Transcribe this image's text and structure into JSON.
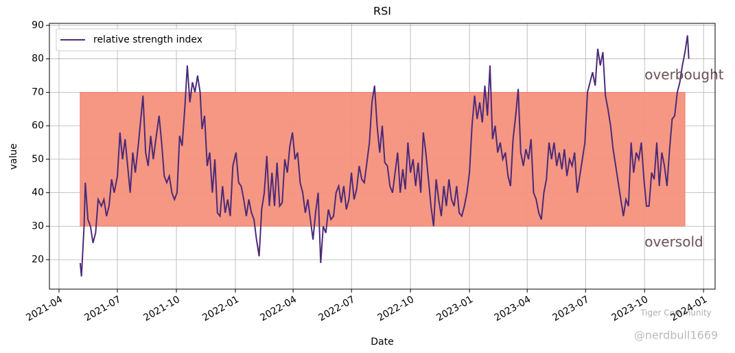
{
  "chart_data": {
    "type": "line",
    "title": "RSI",
    "x_label": "Date",
    "y_label": "value",
    "series": [
      {
        "name": "relative strength index",
        "color": "#4b2a78",
        "x": [
          "2021-05-04",
          "2021-05-06",
          "2021-05-10",
          "2021-05-12",
          "2021-05-16",
          "2021-05-20",
          "2021-05-24",
          "2021-05-28",
          "2021-06-01",
          "2021-06-06",
          "2021-06-10",
          "2021-06-14",
          "2021-06-18",
          "2021-06-22",
          "2021-06-26",
          "2021-07-01",
          "2021-07-05",
          "2021-07-09",
          "2021-07-13",
          "2021-07-17",
          "2021-07-21",
          "2021-07-25",
          "2021-07-29",
          "2021-08-03",
          "2021-08-07",
          "2021-08-10",
          "2021-08-14",
          "2021-08-18",
          "2021-08-22",
          "2021-08-26",
          "2021-08-30",
          "2021-09-04",
          "2021-09-08",
          "2021-09-12",
          "2021-09-16",
          "2021-09-20",
          "2021-09-24",
          "2021-09-28",
          "2021-10-02",
          "2021-10-06",
          "2021-10-10",
          "2021-10-14",
          "2021-10-18",
          "2021-10-22",
          "2021-10-26",
          "2021-10-30",
          "2021-11-03",
          "2021-11-07",
          "2021-11-10",
          "2021-11-14",
          "2021-11-18",
          "2021-11-22",
          "2021-11-26",
          "2021-11-30",
          "2021-12-04",
          "2021-12-08",
          "2021-12-12",
          "2021-12-16",
          "2021-12-20",
          "2021-12-24",
          "2021-12-28",
          "2022-01-02",
          "2022-01-06",
          "2022-01-10",
          "2022-01-14",
          "2022-01-18",
          "2022-01-22",
          "2022-01-26",
          "2022-01-30",
          "2022-02-03",
          "2022-02-07",
          "2022-02-11",
          "2022-02-15",
          "2022-02-19",
          "2022-02-23",
          "2022-02-27",
          "2022-03-03",
          "2022-03-07",
          "2022-03-11",
          "2022-03-15",
          "2022-03-19",
          "2022-03-23",
          "2022-03-27",
          "2022-03-31",
          "2022-04-04",
          "2022-04-08",
          "2022-04-12",
          "2022-04-16",
          "2022-04-20",
          "2022-04-24",
          "2022-04-28",
          "2022-05-02",
          "2022-05-06",
          "2022-05-10",
          "2022-05-14",
          "2022-05-18",
          "2022-05-22",
          "2022-05-26",
          "2022-05-30",
          "2022-06-03",
          "2022-06-07",
          "2022-06-11",
          "2022-06-15",
          "2022-06-19",
          "2022-06-23",
          "2022-06-27",
          "2022-07-01",
          "2022-07-05",
          "2022-07-09",
          "2022-07-13",
          "2022-07-17",
          "2022-07-21",
          "2022-07-25",
          "2022-07-29",
          "2022-08-02",
          "2022-08-06",
          "2022-08-10",
          "2022-08-14",
          "2022-08-18",
          "2022-08-22",
          "2022-08-26",
          "2022-08-30",
          "2022-09-03",
          "2022-09-07",
          "2022-09-11",
          "2022-09-15",
          "2022-09-19",
          "2022-09-23",
          "2022-09-27",
          "2022-10-01",
          "2022-10-05",
          "2022-10-09",
          "2022-10-13",
          "2022-10-17",
          "2022-10-21",
          "2022-10-25",
          "2022-10-29",
          "2022-11-02",
          "2022-11-06",
          "2022-11-10",
          "2022-11-14",
          "2022-11-18",
          "2022-11-22",
          "2022-11-26",
          "2022-11-30",
          "2022-12-04",
          "2022-12-08",
          "2022-12-12",
          "2022-12-16",
          "2022-12-20",
          "2022-12-24",
          "2022-12-28",
          "2023-01-01",
          "2023-01-05",
          "2023-01-09",
          "2023-01-13",
          "2023-01-17",
          "2023-01-21",
          "2023-01-25",
          "2023-01-29",
          "2023-02-02",
          "2023-02-06",
          "2023-02-10",
          "2023-02-14",
          "2023-02-18",
          "2023-02-22",
          "2023-02-26",
          "2023-03-02",
          "2023-03-06",
          "2023-03-10",
          "2023-03-14",
          "2023-03-18",
          "2023-03-22",
          "2023-03-26",
          "2023-03-30",
          "2023-04-03",
          "2023-04-07",
          "2023-04-11",
          "2023-04-15",
          "2023-04-19",
          "2023-04-23",
          "2023-04-27",
          "2023-05-01",
          "2023-05-05",
          "2023-05-09",
          "2023-05-13",
          "2023-05-17",
          "2023-05-21",
          "2023-05-25",
          "2023-05-29",
          "2023-06-02",
          "2023-06-06",
          "2023-06-10",
          "2023-06-14",
          "2023-06-18",
          "2023-06-22",
          "2023-06-26",
          "2023-06-30",
          "2023-07-04",
          "2023-07-08",
          "2023-07-12",
          "2023-07-16",
          "2023-07-20",
          "2023-07-24",
          "2023-07-28",
          "2023-08-01",
          "2023-08-05",
          "2023-08-09",
          "2023-08-13",
          "2023-08-17",
          "2023-08-21",
          "2023-08-25",
          "2023-08-29",
          "2023-09-02",
          "2023-09-06",
          "2023-09-10",
          "2023-09-14",
          "2023-09-18",
          "2023-09-22",
          "2023-09-26",
          "2023-09-30",
          "2023-10-04",
          "2023-10-08",
          "2023-10-12",
          "2023-10-16",
          "2023-10-20",
          "2023-10-24",
          "2023-10-28",
          "2023-11-01",
          "2023-11-05",
          "2023-11-09",
          "2023-11-13",
          "2023-11-17",
          "2023-11-21",
          "2023-11-25",
          "2023-11-29",
          "2023-12-03",
          "2023-12-07",
          "2023-12-09"
        ],
        "values": [
          19,
          15,
          30,
          43,
          32,
          30,
          25,
          28,
          38,
          36,
          38,
          33,
          36,
          44,
          40,
          45,
          58,
          50,
          56,
          48,
          40,
          52,
          46,
          55,
          63,
          69,
          52,
          48,
          57,
          50,
          56,
          63,
          55,
          45,
          43,
          45,
          40,
          38,
          40,
          57,
          54,
          65,
          78,
          67,
          73,
          70,
          75,
          70,
          59,
          63,
          48,
          52,
          40,
          50,
          34,
          33,
          42,
          34,
          38,
          33,
          48,
          52,
          43,
          42,
          38,
          33,
          38,
          34,
          32,
          26,
          21,
          35,
          40,
          51,
          36,
          46,
          36,
          49,
          36,
          37,
          50,
          46,
          54,
          58,
          50,
          52,
          43,
          40,
          34,
          38,
          32,
          26,
          34,
          40,
          19,
          30,
          28,
          35,
          32,
          33,
          40,
          42,
          37,
          42,
          35,
          38,
          46,
          38,
          41,
          48,
          44,
          43,
          49,
          55,
          67,
          72,
          60,
          52,
          60,
          49,
          48,
          42,
          40,
          46,
          52,
          40,
          47,
          41,
          55,
          46,
          50,
          42,
          49,
          40,
          58,
          52,
          44,
          36,
          30,
          44,
          38,
          33,
          42,
          36,
          44,
          38,
          36,
          42,
          34,
          33,
          36,
          40,
          46,
          60,
          69,
          62,
          67,
          61,
          72,
          63,
          78,
          56,
          60,
          52,
          55,
          50,
          52,
          45,
          42,
          56,
          63,
          71,
          52,
          48,
          53,
          50,
          56,
          40,
          38,
          34,
          32,
          40,
          44,
          55,
          50,
          55,
          48,
          52,
          47,
          53,
          45,
          50,
          48,
          52,
          40,
          45,
          50,
          55,
          70,
          73,
          76,
          72,
          83,
          78,
          82,
          69,
          65,
          60,
          53,
          48,
          43,
          38,
          33,
          38,
          36,
          55,
          46,
          52,
          50,
          55,
          44,
          36,
          36,
          46,
          44,
          55,
          42,
          52,
          48,
          42,
          53,
          62,
          63,
          70,
          73,
          78,
          82,
          87,
          80
        ]
      }
    ],
    "band": {
      "x": [
        "2021-05-04",
        "2023-12-03"
      ],
      "y": [
        30,
        70
      ],
      "color": "#f4917c"
    },
    "annotations": [
      {
        "text": "overbought",
        "x": "2023-10-01",
        "y": 75
      },
      {
        "text": "oversold",
        "x": "2023-10-01",
        "y": 25
      }
    ],
    "xlim": [
      "2021-03-17",
      "2024-01-19"
    ],
    "ylim": [
      11.2,
      90.6
    ],
    "xticks": [
      {
        "value": "2021-04-01",
        "label": "2021-04"
      },
      {
        "value": "2021-07-01",
        "label": "2021-07"
      },
      {
        "value": "2021-10-01",
        "label": "2021-10"
      },
      {
        "value": "2022-01-01",
        "label": "2022-01"
      },
      {
        "value": "2022-04-01",
        "label": "2022-04"
      },
      {
        "value": "2022-07-01",
        "label": "2022-07"
      },
      {
        "value": "2022-10-01",
        "label": "2022-10"
      },
      {
        "value": "2023-01-01",
        "label": "2023-01"
      },
      {
        "value": "2023-04-01",
        "label": "2023-04"
      },
      {
        "value": "2023-07-01",
        "label": "2023-07"
      },
      {
        "value": "2023-10-01",
        "label": "2023-10"
      },
      {
        "value": "2024-01-01",
        "label": "2024-01"
      }
    ],
    "yticks": [
      20,
      30,
      40,
      50,
      60,
      70,
      80,
      90
    ],
    "grid": true,
    "legend": "upper left",
    "watermark": [
      "Tiger Community",
      "@nerdbull1669"
    ]
  }
}
